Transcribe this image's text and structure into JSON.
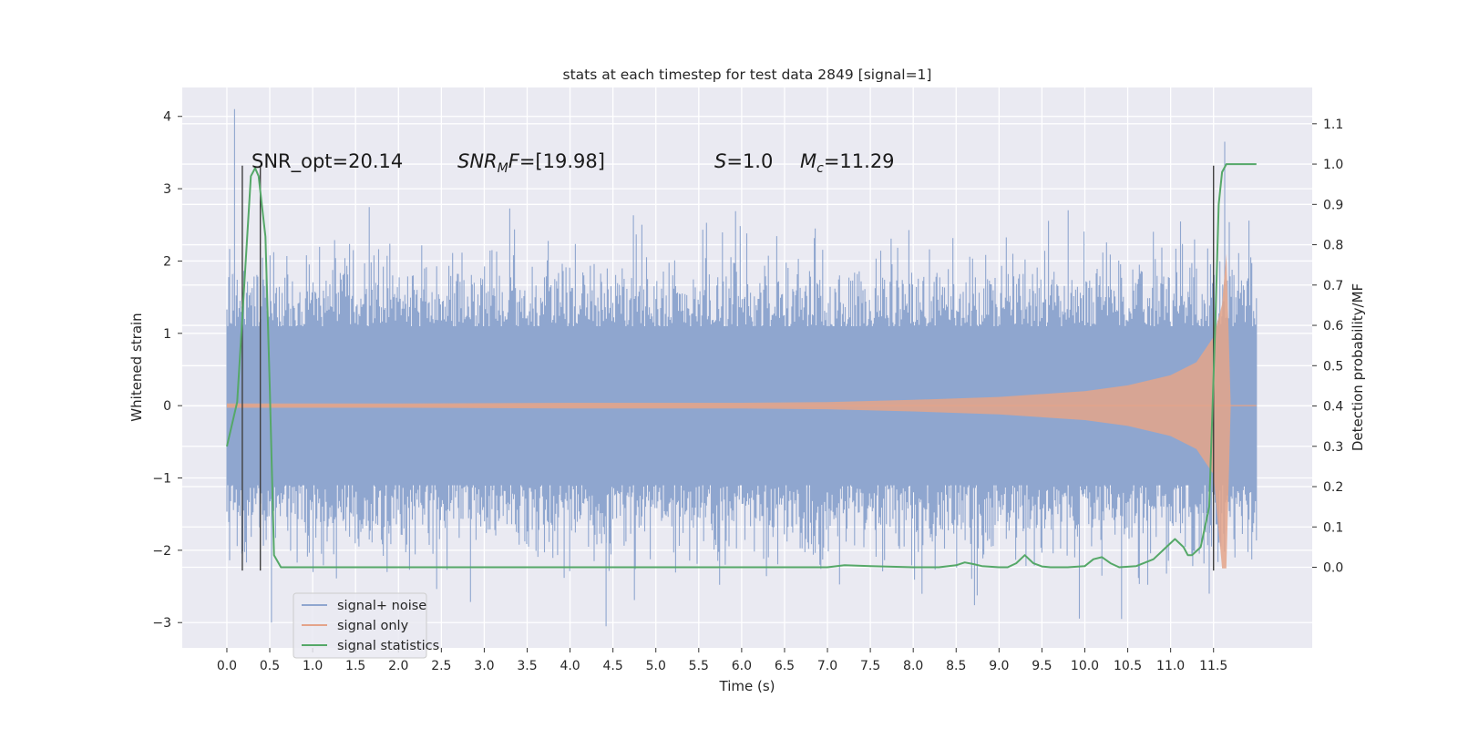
{
  "chart_data": {
    "type": "line",
    "title": "stats at each timestep for test data 2849 [signal=1]",
    "xlabel": "Time (s)",
    "ylabel": "Whitened strain",
    "ylabel_right": "Detection probability/MF",
    "xlim": [
      -0.52,
      12.65
    ],
    "ylim": [
      -3.35,
      4.4
    ],
    "ylim_right": [
      -0.2,
      1.19
    ],
    "x_ticks": [
      "0.0",
      "0.5",
      "1.0",
      "1.5",
      "2.0",
      "2.5",
      "3.0",
      "3.5",
      "4.0",
      "4.5",
      "5.0",
      "5.5",
      "6.0",
      "6.5",
      "7.0",
      "7.5",
      "8.0",
      "8.5",
      "9.0",
      "9.5",
      "10.0",
      "10.5",
      "11.0",
      "11.5"
    ],
    "y_ticks": [
      "4",
      "3",
      "2",
      "1",
      "0",
      "−1",
      "−2",
      "−3"
    ],
    "y_ticks_right": [
      "1.1",
      "1.0",
      "0.9",
      "0.8",
      "0.7",
      "0.6",
      "0.5",
      "0.4",
      "0.3",
      "0.2",
      "0.1",
      "0.0"
    ],
    "grid": true,
    "legend_position": "lower-left",
    "annotations": {
      "snr_opt": "SNR_opt=20.14",
      "snr_mf_name": "SNR",
      "snr_mf_sub": "M",
      "snr_mf_name2": "F",
      "snr_mf_value": "=[19.98]",
      "s_name": "S",
      "s_value": "=1.0",
      "mc_name": "M",
      "mc_sub": "c",
      "mc_value": "=11.29"
    },
    "series": [
      {
        "name": "signal+ noise",
        "axis": "left",
        "color": "#8fa6cf",
        "x_range": [
          0.0,
          12.0
        ],
        "noise_band": [
          -1.1,
          1.1
        ],
        "peak_max": 4.1,
        "peak_min": -3.05
      },
      {
        "name": "signal only",
        "axis": "left",
        "color": "#e4a48a",
        "envelope": {
          "x": [
            0.0,
            2.0,
            4.0,
            6.0,
            7.0,
            8.0,
            9.0,
            10.0,
            10.5,
            11.0,
            11.3,
            11.5,
            11.6,
            11.65,
            11.7
          ],
          "amplitude": [
            0.03,
            0.03,
            0.04,
            0.04,
            0.05,
            0.08,
            0.12,
            0.2,
            0.28,
            0.42,
            0.6,
            0.95,
            1.4,
            2.1,
            0.0
          ]
        }
      },
      {
        "name": "signal statistics",
        "axis": "right",
        "color": "#55a868",
        "x": [
          0.0,
          0.12,
          0.28,
          0.33,
          0.37,
          0.45,
          0.5,
          0.55,
          0.63,
          1.0,
          2.0,
          3.0,
          4.0,
          5.0,
          6.0,
          6.5,
          7.0,
          7.2,
          7.5,
          8.0,
          8.3,
          8.5,
          8.6,
          8.7,
          8.8,
          9.0,
          9.1,
          9.2,
          9.3,
          9.4,
          9.5,
          9.6,
          9.8,
          10.0,
          10.1,
          10.2,
          10.3,
          10.4,
          10.6,
          10.8,
          10.95,
          11.05,
          11.15,
          11.2,
          11.25,
          11.35,
          11.45,
          11.52,
          11.56,
          11.6,
          11.65,
          11.7,
          12.0
        ],
        "y": [
          0.3,
          0.41,
          0.97,
          0.99,
          0.97,
          0.82,
          0.45,
          0.03,
          0.0,
          0.0,
          0.0,
          0.0,
          0.0,
          0.0,
          0.0,
          0.0,
          0.0,
          0.005,
          0.003,
          0.0,
          0.0,
          0.005,
          0.012,
          0.008,
          0.003,
          0.0,
          0.0,
          0.01,
          0.03,
          0.01,
          0.002,
          0.0,
          0.0,
          0.003,
          0.02,
          0.025,
          0.01,
          0.0,
          0.003,
          0.02,
          0.05,
          0.07,
          0.05,
          0.03,
          0.03,
          0.05,
          0.15,
          0.6,
          0.9,
          0.98,
          1.0,
          1.0,
          1.0
        ]
      }
    ],
    "detection_markers": {
      "x": [
        0.18,
        0.39,
        11.5
      ],
      "y_range": [
        -2.28,
        3.32
      ],
      "color": "#404040"
    }
  }
}
